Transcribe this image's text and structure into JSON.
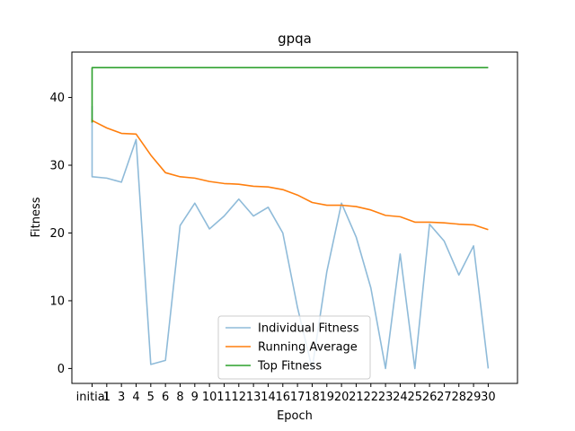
{
  "chart_data": {
    "type": "line",
    "title": "gpqa",
    "xlabel": "Epoch",
    "ylabel": "Fitness",
    "categories": [
      "initial",
      "1",
      "3",
      "4",
      "5",
      "6",
      "8",
      "9",
      "10",
      "11",
      "12",
      "13",
      "14",
      "16",
      "17",
      "18",
      "19",
      "20",
      "21",
      "22",
      "23",
      "24",
      "25",
      "26",
      "27",
      "28",
      "29",
      "30"
    ],
    "y_ticks": [
      0,
      10,
      20,
      30,
      40
    ],
    "ylim": [
      -2.2,
      46.7
    ],
    "legend_position": "lower center",
    "series": [
      {
        "name": "Individual Fitness",
        "color": "#1f77b4",
        "alpha": 0.5,
        "points": [
          {
            "x": 0,
            "y": 28.3
          },
          {
            "x": 0,
            "y": 38.7
          },
          {
            "x": 0,
            "y": 28.3
          },
          {
            "x": 1,
            "y": 28.1
          },
          {
            "x": 2,
            "y": 27.5
          },
          {
            "x": 3,
            "y": 33.8
          },
          {
            "x": 4,
            "y": 0.6
          },
          {
            "x": 5,
            "y": 1.2
          },
          {
            "x": 6,
            "y": 21.1
          },
          {
            "x": 7,
            "y": 24.4
          },
          {
            "x": 8,
            "y": 20.6
          },
          {
            "x": 9,
            "y": 22.5
          },
          {
            "x": 10,
            "y": 25.0
          },
          {
            "x": 11,
            "y": 22.5
          },
          {
            "x": 12,
            "y": 23.8
          },
          {
            "x": 13,
            "y": 20.0
          },
          {
            "x": 14,
            "y": 9.0
          },
          {
            "x": 15,
            "y": 0.0
          },
          {
            "x": 16,
            "y": 14.3
          },
          {
            "x": 17,
            "y": 24.4
          },
          {
            "x": 18,
            "y": 19.4
          },
          {
            "x": 19,
            "y": 11.9
          },
          {
            "x": 20,
            "y": 0.0
          },
          {
            "x": 21,
            "y": 16.9
          },
          {
            "x": 22,
            "y": 0.0
          },
          {
            "x": 23,
            "y": 21.3
          },
          {
            "x": 24,
            "y": 18.8
          },
          {
            "x": 25,
            "y": 13.8
          },
          {
            "x": 26,
            "y": 18.1
          },
          {
            "x": 27,
            "y": 0.0
          }
        ]
      },
      {
        "name": "Running Average",
        "color": "#ff7f0e",
        "alpha": 1,
        "points": [
          {
            "x": 0,
            "y": 36.3
          },
          {
            "x": 0,
            "y": 36.8
          },
          {
            "x": 0,
            "y": 36.6
          },
          {
            "x": 1,
            "y": 35.5
          },
          {
            "x": 2,
            "y": 34.7
          },
          {
            "x": 3,
            "y": 34.6
          },
          {
            "x": 4,
            "y": 31.5
          },
          {
            "x": 5,
            "y": 28.9
          },
          {
            "x": 6,
            "y": 28.3
          },
          {
            "x": 7,
            "y": 28.1
          },
          {
            "x": 8,
            "y": 27.6
          },
          {
            "x": 9,
            "y": 27.3
          },
          {
            "x": 10,
            "y": 27.2
          },
          {
            "x": 11,
            "y": 26.9
          },
          {
            "x": 12,
            "y": 26.8
          },
          {
            "x": 13,
            "y": 26.4
          },
          {
            "x": 14,
            "y": 25.6
          },
          {
            "x": 15,
            "y": 24.5
          },
          {
            "x": 16,
            "y": 24.1
          },
          {
            "x": 17,
            "y": 24.1
          },
          {
            "x": 18,
            "y": 23.9
          },
          {
            "x": 19,
            "y": 23.4
          },
          {
            "x": 20,
            "y": 22.6
          },
          {
            "x": 21,
            "y": 22.4
          },
          {
            "x": 22,
            "y": 21.6
          },
          {
            "x": 23,
            "y": 21.6
          },
          {
            "x": 24,
            "y": 21.5
          },
          {
            "x": 25,
            "y": 21.3
          },
          {
            "x": 26,
            "y": 21.2
          },
          {
            "x": 27,
            "y": 20.5
          }
        ]
      },
      {
        "name": "Top Fitness",
        "color": "#2ca02c",
        "alpha": 1,
        "points": [
          {
            "x": 0,
            "y": 36.3
          },
          {
            "x": 0,
            "y": 44.4
          },
          {
            "x": 27,
            "y": 44.4
          }
        ]
      }
    ]
  }
}
